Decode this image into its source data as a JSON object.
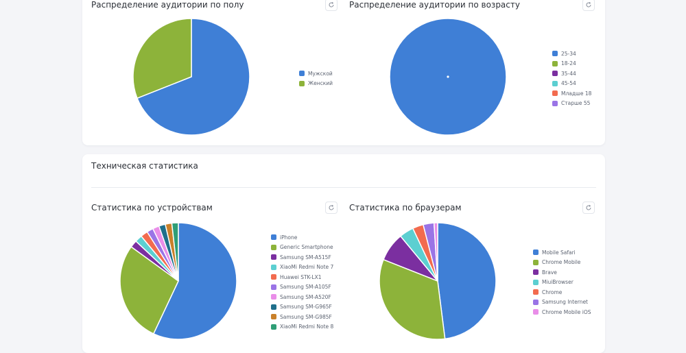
{
  "icons": {
    "refresh": "refresh-icon"
  },
  "technical_section": {
    "title": "Техническая статистика"
  },
  "chart_data": [
    {
      "id": "gender",
      "type": "pie",
      "title": "Распределение аудитории по полу",
      "categories": [
        "Мужской",
        "Женский"
      ],
      "values": [
        69,
        31
      ],
      "colors": [
        "#3f7fd6",
        "#8db33a"
      ],
      "legend_position": "right"
    },
    {
      "id": "age",
      "type": "pie",
      "title": "Распределение аудитории по возрасту",
      "categories": [
        "25-34",
        "18-24",
        "35-44",
        "45-54",
        "Младше 18",
        "Старше 55"
      ],
      "values": [
        100,
        0,
        0,
        0,
        0,
        0
      ],
      "colors": [
        "#3f7fd6",
        "#8db33a",
        "#7b2fa0",
        "#5ccfd1",
        "#f26b4f",
        "#9a74e6"
      ],
      "legend_position": "right"
    },
    {
      "id": "devices",
      "type": "pie",
      "title": "Статистика по устройствам",
      "categories": [
        "iPhone",
        "Generic Smartphone",
        "Samsung SM-A515F",
        "XiaoMi Redmi Note 7",
        "Huawei STK-LX1",
        "Samsung SM-A105F",
        "Samsung SM-A520F",
        "Samsung SM-G965F",
        "Samsung SM-G985F",
        "XiaoMi Redmi Note 8"
      ],
      "values": [
        57,
        28,
        2,
        2,
        2,
        1.8,
        1.8,
        1.8,
        1.8,
        1.8
      ],
      "colors": [
        "#3f7fd6",
        "#8db33a",
        "#7b2fa0",
        "#5ccfd1",
        "#f26b4f",
        "#9a74e6",
        "#e98ee8",
        "#1f6f8b",
        "#c9802a",
        "#2f9e76"
      ],
      "legend_position": "right"
    },
    {
      "id": "browsers",
      "type": "pie",
      "title": "Статистика по браузерам",
      "categories": [
        "Mobile Safari",
        "Chrome Mobile",
        "Brave",
        "MiuiBrowser",
        "Chrome",
        "Samsung Internet",
        "Chrome Mobile iOS"
      ],
      "values": [
        48,
        33,
        8,
        4,
        3,
        3,
        1
      ],
      "colors": [
        "#3f7fd6",
        "#8db33a",
        "#7b2fa0",
        "#5ccfd1",
        "#f26b4f",
        "#9a74e6",
        "#e98ee8"
      ],
      "legend_position": "right"
    }
  ]
}
